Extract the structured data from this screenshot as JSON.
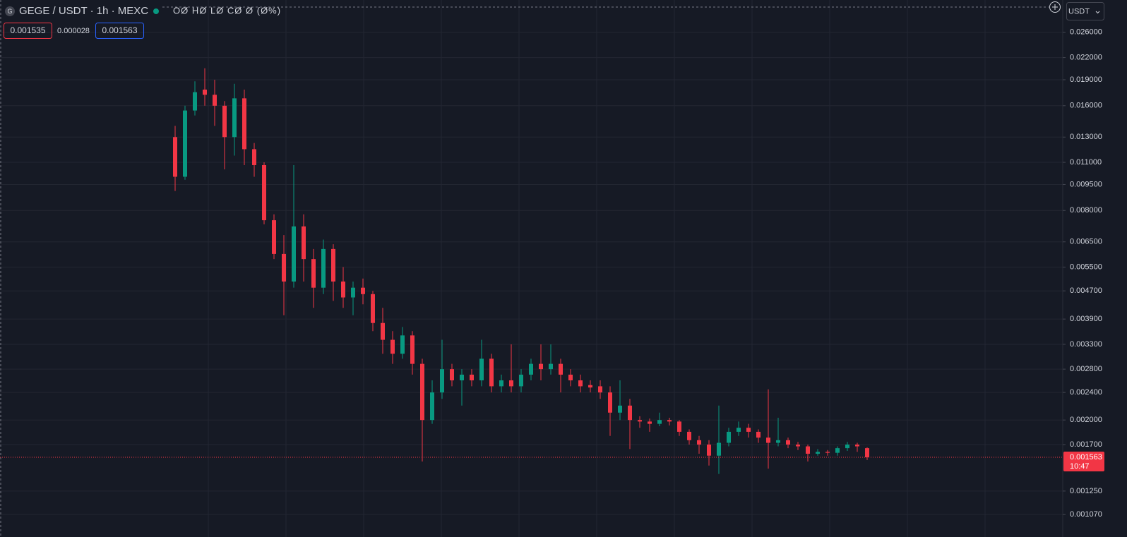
{
  "chart_data": {
    "type": "candlestick",
    "title": "GEGE / USDT · 1h · MEXC",
    "ohlc_readout": "OØ HØ LØ CØ Ø (Ø%)",
    "bid": 0.001535,
    "spread": 2.8e-05,
    "ask": 0.001563,
    "currency": "USDT",
    "last_price": 0.001563,
    "countdown": "10:47",
    "log_scale": true,
    "grid": true,
    "up_color": "#089981",
    "down_color": "#f23645",
    "ylim": [
      0.00098,
      0.0322
    ],
    "yticks": [
      {
        "value": 0.026,
        "label": "0.026000"
      },
      {
        "value": 0.022,
        "label": "0.022000"
      },
      {
        "value": 0.019,
        "label": "0.019000"
      },
      {
        "value": 0.016,
        "label": "0.016000"
      },
      {
        "value": 0.013,
        "label": "0.013000"
      },
      {
        "value": 0.011,
        "label": "0.011000"
      },
      {
        "value": 0.0095,
        "label": "0.009500"
      },
      {
        "value": 0.008,
        "label": "0.008000"
      },
      {
        "value": 0.0065,
        "label": "0.006500"
      },
      {
        "value": 0.0055,
        "label": "0.005500"
      },
      {
        "value": 0.0047,
        "label": "0.004700"
      },
      {
        "value": 0.0039,
        "label": "0.003900"
      },
      {
        "value": 0.0033,
        "label": "0.003300"
      },
      {
        "value": 0.0028,
        "label": "0.002800"
      },
      {
        "value": 0.0024,
        "label": "0.002400"
      },
      {
        "value": 0.002,
        "label": "0.002000"
      },
      {
        "value": 0.0017,
        "label": "0.001700"
      },
      {
        "value": 0.00125,
        "label": "0.001250"
      },
      {
        "value": 0.00107,
        "label": "0.001070"
      }
    ],
    "open": [
      0.013,
      0.01,
      0.0155,
      0.0178,
      0.0172,
      0.016,
      0.013,
      0.0168,
      0.012,
      0.0108,
      0.0075,
      0.006,
      0.005,
      0.0072,
      0.0058,
      0.0048,
      0.0062,
      0.005,
      0.0045,
      0.0048,
      0.0046,
      0.0038,
      0.0034,
      0.0031,
      0.0035,
      0.0029,
      0.002,
      0.0024,
      0.0028,
      0.0026,
      0.0027,
      0.0026,
      0.003,
      0.0025,
      0.0026,
      0.0025,
      0.0027,
      0.0029,
      0.0028,
      0.0029,
      0.0027,
      0.0026,
      0.00252,
      0.0025,
      0.0024,
      0.0021,
      0.0022,
      0.002,
      0.00198,
      0.00195,
      0.002,
      0.00198,
      0.00185,
      0.00175,
      0.0017,
      0.00158,
      0.00172,
      0.00185,
      0.0019,
      0.00185,
      0.00178,
      0.00172,
      0.00175,
      0.0017,
      0.00168,
      0.0016,
      0.00162,
      0.00161,
      0.00166,
      0.0017,
      0.00166
    ],
    "high": [
      0.014,
      0.016,
      0.0188,
      0.0205,
      0.019,
      0.0165,
      0.0185,
      0.0178,
      0.0125,
      0.011,
      0.0078,
      0.0068,
      0.0108,
      0.0078,
      0.0062,
      0.0066,
      0.0064,
      0.0055,
      0.005,
      0.0051,
      0.0047,
      0.0042,
      0.0036,
      0.0037,
      0.0036,
      0.003,
      0.0026,
      0.0034,
      0.0029,
      0.0028,
      0.0028,
      0.0034,
      0.0031,
      0.0027,
      0.0033,
      0.0028,
      0.003,
      0.0033,
      0.0033,
      0.003,
      0.0028,
      0.0027,
      0.0026,
      0.0026,
      0.0025,
      0.0026,
      0.0023,
      0.00205,
      0.00202,
      0.0021,
      0.00203,
      0.002,
      0.00188,
      0.0018,
      0.00175,
      0.0022,
      0.0019,
      0.00198,
      0.00195,
      0.00188,
      0.00245,
      0.00203,
      0.00178,
      0.00173,
      0.0017,
      0.00165,
      0.00164,
      0.00168,
      0.00173,
      0.00172,
      0.00167
    ],
    "low": [
      0.0091,
      0.0098,
      0.015,
      0.016,
      0.014,
      0.0105,
      0.0115,
      0.0108,
      0.01,
      0.0073,
      0.0058,
      0.004,
      0.0048,
      0.005,
      0.0042,
      0.0046,
      0.0044,
      0.0042,
      0.004,
      0.0043,
      0.0036,
      0.0031,
      0.0029,
      0.003,
      0.0027,
      0.00152,
      0.00195,
      0.0023,
      0.0025,
      0.0022,
      0.0025,
      0.0025,
      0.0024,
      0.0024,
      0.0024,
      0.0024,
      0.0026,
      0.0026,
      0.0027,
      0.0024,
      0.0025,
      0.0024,
      0.0024,
      0.0023,
      0.0018,
      0.002,
      0.00165,
      0.0019,
      0.00185,
      0.00192,
      0.00193,
      0.0018,
      0.0017,
      0.0016,
      0.00148,
      0.0014,
      0.00168,
      0.0018,
      0.00178,
      0.00172,
      0.00145,
      0.00168,
      0.00166,
      0.00164,
      0.00152,
      0.00158,
      0.00158,
      0.00158,
      0.00163,
      0.00162,
      0.001535
    ],
    "close": [
      0.01,
      0.0155,
      0.0175,
      0.0172,
      0.016,
      0.013,
      0.0168,
      0.012,
      0.0108,
      0.0075,
      0.006,
      0.005,
      0.0072,
      0.0058,
      0.0048,
      0.0062,
      0.005,
      0.0045,
      0.0048,
      0.0046,
      0.0038,
      0.0034,
      0.0031,
      0.0035,
      0.0029,
      0.002,
      0.0024,
      0.0028,
      0.0026,
      0.0027,
      0.0026,
      0.003,
      0.0025,
      0.0026,
      0.0025,
      0.0027,
      0.0029,
      0.0028,
      0.0029,
      0.0027,
      0.0026,
      0.0025,
      0.00248,
      0.0024,
      0.0021,
      0.0022,
      0.002,
      0.00198,
      0.00195,
      0.002,
      0.00198,
      0.00185,
      0.00175,
      0.0017,
      0.00158,
      0.00172,
      0.00185,
      0.0019,
      0.00185,
      0.00178,
      0.00172,
      0.00175,
      0.0017,
      0.00168,
      0.0016,
      0.00162,
      0.00161,
      0.00166,
      0.0017,
      0.00168,
      0.001563
    ]
  }
}
